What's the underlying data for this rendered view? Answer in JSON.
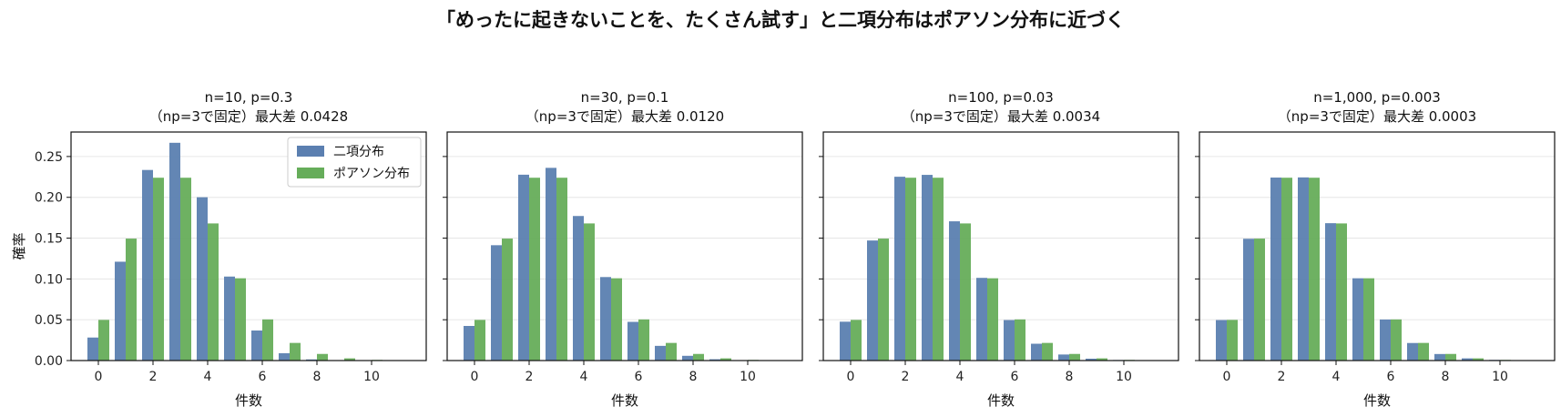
{
  "figure": {
    "title": "「めったに起きないことを、たくさん試す」と二項分布はポアソン分布に近づく"
  },
  "colors": {
    "binomial": "#5b7fb0",
    "poisson": "#66ad5a",
    "grid": "#e6e6e6",
    "axis": "#111111"
  },
  "chart_data": [
    {
      "type": "bar",
      "title": "n=10, p=0.3",
      "subtitle": "（np=3で固定）最大差 0.0428",
      "xlabel": "件数",
      "ylabel": "確率",
      "xlim": [
        -1,
        12
      ],
      "ylim": [
        0,
        0.28
      ],
      "xticks": [
        0,
        2,
        4,
        6,
        8,
        10
      ],
      "yticks": [
        "0.00",
        "0.05",
        "0.10",
        "0.15",
        "0.20",
        "0.25"
      ],
      "grid": "horizontal",
      "legend_position": "top-right",
      "x": [
        0,
        1,
        2,
        3,
        4,
        5,
        6,
        7,
        8,
        9,
        10,
        11
      ],
      "series": [
        {
          "name": "二項分布",
          "values": [
            0.0282,
            0.1211,
            0.2335,
            0.2668,
            0.2001,
            0.1029,
            0.0368,
            0.009,
            0.0014,
            0.0001,
            0.0,
            0.0
          ]
        },
        {
          "name": "ポアソン分布",
          "values": [
            0.0498,
            0.1494,
            0.224,
            0.224,
            0.168,
            0.1008,
            0.0504,
            0.0216,
            0.0081,
            0.0027,
            0.0008,
            0.0002
          ]
        }
      ]
    },
    {
      "type": "bar",
      "title": "n=30, p=0.1",
      "subtitle": "（np=3で固定）最大差 0.0120",
      "xlabel": "件数",
      "ylabel": "",
      "xlim": [
        -1,
        12
      ],
      "ylim": [
        0,
        0.28
      ],
      "xticks": [
        0,
        2,
        4,
        6,
        8,
        10
      ],
      "grid": "horizontal",
      "x": [
        0,
        1,
        2,
        3,
        4,
        5,
        6,
        7,
        8,
        9,
        10,
        11
      ],
      "series": [
        {
          "name": "二項分布",
          "values": [
            0.0424,
            0.1413,
            0.2277,
            0.2361,
            0.1771,
            0.1023,
            0.0474,
            0.018,
            0.0058,
            0.0016,
            0.0004,
            0.0001
          ]
        },
        {
          "name": "ポアソン分布",
          "values": [
            0.0498,
            0.1494,
            0.224,
            0.224,
            0.168,
            0.1008,
            0.0504,
            0.0216,
            0.0081,
            0.0027,
            0.0008,
            0.0002
          ]
        }
      ]
    },
    {
      "type": "bar",
      "title": "n=100, p=0.03",
      "subtitle": "（np=3で固定）最大差 0.0034",
      "xlabel": "件数",
      "ylabel": "",
      "xlim": [
        -1,
        12
      ],
      "ylim": [
        0,
        0.28
      ],
      "xticks": [
        0,
        2,
        4,
        6,
        8,
        10
      ],
      "grid": "horizontal",
      "x": [
        0,
        1,
        2,
        3,
        4,
        5,
        6,
        7,
        8,
        9,
        10,
        11
      ],
      "series": [
        {
          "name": "二項分布",
          "values": [
            0.0476,
            0.1471,
            0.2252,
            0.2275,
            0.1706,
            0.1013,
            0.0496,
            0.0206,
            0.0074,
            0.0023,
            0.0007,
            0.0002
          ]
        },
        {
          "name": "ポアソン分布",
          "values": [
            0.0498,
            0.1494,
            0.224,
            0.224,
            0.168,
            0.1008,
            0.0504,
            0.0216,
            0.0081,
            0.0027,
            0.0008,
            0.0002
          ]
        }
      ]
    },
    {
      "type": "bar",
      "title": "n=1,000, p=0.003",
      "subtitle": "（np=3で固定）最大差 0.0003",
      "xlabel": "件数",
      "ylabel": "",
      "xlim": [
        -1,
        12
      ],
      "ylim": [
        0,
        0.28
      ],
      "xticks": [
        0,
        2,
        4,
        6,
        8,
        10
      ],
      "grid": "horizontal",
      "x": [
        0,
        1,
        2,
        3,
        4,
        5,
        6,
        7,
        8,
        9,
        10,
        11
      ],
      "series": [
        {
          "name": "二項分布",
          "values": [
            0.0496,
            0.1492,
            0.2242,
            0.2244,
            0.1683,
            0.1008,
            0.0503,
            0.0215,
            0.008,
            0.0027,
            0.0008,
            0.0002
          ]
        },
        {
          "name": "ポアソン分布",
          "values": [
            0.0498,
            0.1494,
            0.224,
            0.224,
            0.168,
            0.1008,
            0.0504,
            0.0216,
            0.0081,
            0.0027,
            0.0008,
            0.0002
          ]
        }
      ]
    }
  ]
}
